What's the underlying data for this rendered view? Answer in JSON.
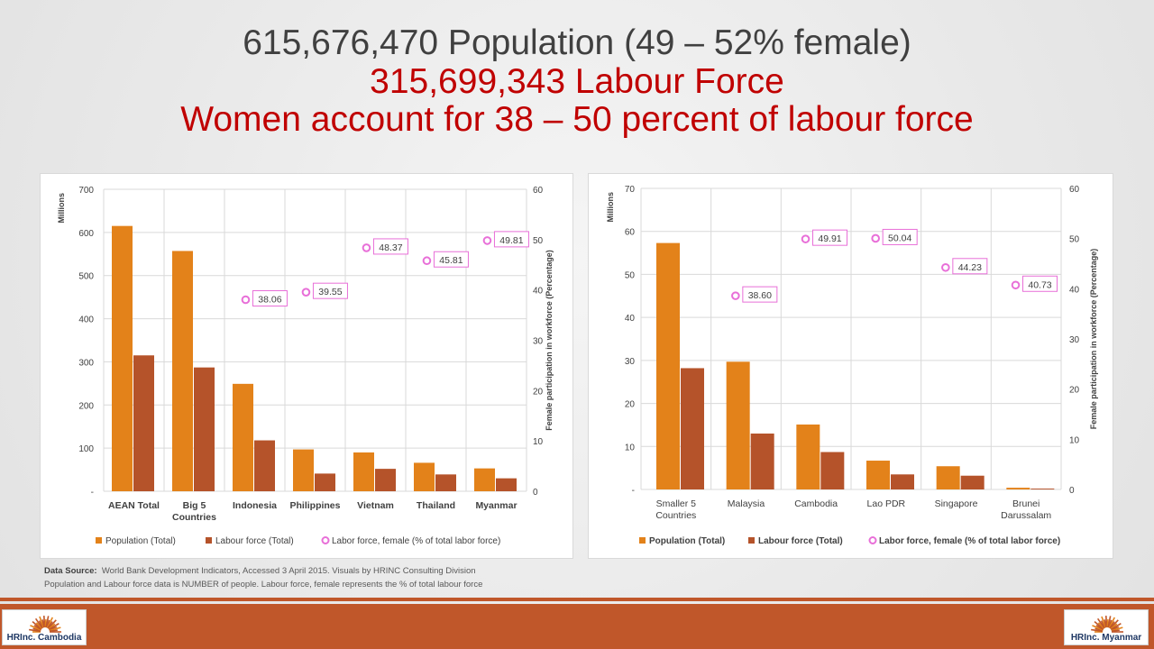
{
  "header": {
    "line1": "615,676,470 Population (49 – 52% female)",
    "line2": "315,699,343 Labour Force",
    "line3": "Women account for 38 – 50 percent of labour force"
  },
  "colors": {
    "title_dark": "#404040",
    "title_red": "#c00000",
    "population": "#e3821a",
    "labour": "#b5532a",
    "female_marker": "#e86fd8",
    "label_border": "#e86fd8",
    "footer": "#c0572a"
  },
  "chart_data": [
    {
      "type": "bar",
      "categories": [
        [
          "AEAN Total"
        ],
        [
          "Big 5",
          "Countries"
        ],
        [
          "Indonesia"
        ],
        [
          "Philippines"
        ],
        [
          "Vietnam"
        ],
        [
          "Thailand"
        ],
        [
          "Myanmar"
        ]
      ],
      "series": [
        {
          "name": "Population (Total)",
          "axis": "left",
          "values": [
            615,
            557,
            249,
            97,
            90,
            66,
            53
          ]
        },
        {
          "name": "Labour force (Total)",
          "axis": "left",
          "values": [
            315,
            287,
            118,
            41,
            52,
            39,
            30
          ]
        },
        {
          "name": "Labor force, female (% of total labor force)",
          "axis": "right",
          "kind": "scatter",
          "values": [
            null,
            null,
            38.06,
            39.55,
            48.37,
            45.81,
            49.81
          ],
          "labels": [
            "",
            "",
            "38.06",
            "39.55",
            "48.37",
            "45.81",
            "49.81"
          ]
        }
      ],
      "ylabel": "Millions",
      "y2label": "Female participation in workforce (Percentage)",
      "ylim": [
        0,
        700
      ],
      "y2lim": [
        0,
        60
      ],
      "yticks": [
        "-",
        "100",
        "200",
        "300",
        "400",
        "500",
        "600",
        "700"
      ],
      "y2ticks": [
        "0",
        "10",
        "20",
        "30",
        "40",
        "50",
        "60"
      ],
      "legend": [
        "Population (Total)",
        "Labour force (Total)",
        "Labor force, female (% of total labor force)"
      ],
      "legend_bold": false,
      "legend_position": "bottom"
    },
    {
      "type": "bar",
      "categories": [
        [
          "Smaller 5",
          "Countries"
        ],
        [
          "Malaysia"
        ],
        [
          "Cambodia"
        ],
        [
          "Lao PDR"
        ],
        [
          "Singapore"
        ],
        [
          "Brunei",
          "Darussalam"
        ]
      ],
      "series": [
        {
          "name": "Population (Total)",
          "axis": "left",
          "values": [
            57.3,
            29.7,
            15.1,
            6.7,
            5.4,
            0.4
          ]
        },
        {
          "name": "Labour force (Total)",
          "axis": "left",
          "values": [
            28.2,
            13.0,
            8.7,
            3.5,
            3.2,
            0.2
          ]
        },
        {
          "name": "Labor force, female (% of total labor force)",
          "axis": "right",
          "kind": "scatter",
          "values": [
            null,
            38.6,
            49.91,
            50.04,
            44.23,
            40.73
          ],
          "labels": [
            "",
            "38.60",
            "49.91",
            "50.04",
            "44.23",
            "40.73"
          ]
        }
      ],
      "ylabel": "Millions",
      "y2label": "Female participation in workforce (Percentage)",
      "ylim": [
        0,
        70
      ],
      "y2lim": [
        0,
        60
      ],
      "yticks": [
        "-",
        "10",
        "20",
        "30",
        "40",
        "50",
        "60",
        "70"
      ],
      "y2ticks": [
        "0",
        "10",
        "20",
        "30",
        "40",
        "50",
        "60"
      ],
      "legend": [
        "Population (Total)",
        "Labour force (Total)",
        "Labor force, female (% of total labor force)"
      ],
      "legend_bold": true,
      "legend_position": "bottom"
    }
  ],
  "source": {
    "label": "Data Source:",
    "line1": "World Bank Development Indicators, Accessed 3 April 2015. Visuals by HRINC Consulting Division",
    "line2": "Population and Labour force data is NUMBER of people.  Labour force, female represents the % of total labour force"
  },
  "logos": {
    "left": {
      "brand": "HRInc.",
      "country": "Cambodia"
    },
    "right": {
      "brand": "HRInc.",
      "country": "Myanmar"
    }
  }
}
